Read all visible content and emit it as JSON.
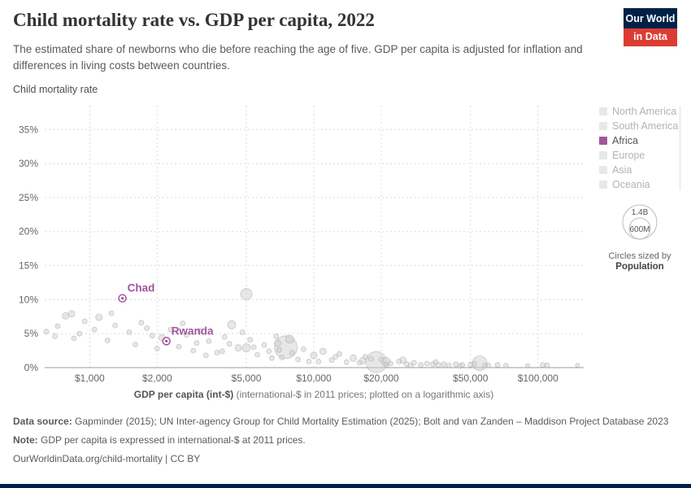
{
  "logo": {
    "line1": "Our World",
    "line2": "in Data"
  },
  "colors": {
    "accent": "#a2559c",
    "logo_navy": "#002147",
    "logo_red": "#dc3d33",
    "bottom_bar": "#002147",
    "inactive_swatch": "#e8e8e8"
  },
  "header": {
    "title": "Child mortality rate vs. GDP per capita, 2022",
    "subtitle": "The estimated share of newborns who die before reaching the age of five. GDP per capita is adjusted for inflation and differences in living costs between countries."
  },
  "chart_data": {
    "type": "scatter",
    "title": "Child mortality rate vs. GDP per capita, 2022",
    "ylabel": "Child mortality rate",
    "xlabel_bold": "GDP per capita (int-$)",
    "xlabel_rest": " (international-$ in 2011 prices; plotted on a logarithmic axis)",
    "x_scale": "log",
    "grid": true,
    "xlim": [
      630,
      160000
    ],
    "ylim": [
      0,
      38.5
    ],
    "x_ticks": [
      1000,
      2000,
      5000,
      10000,
      20000,
      50000,
      100000
    ],
    "x_tick_labels": [
      "$1,000",
      "$2,000",
      "$5,000",
      "$10,000",
      "$20,000",
      "$50,000",
      "$100,000"
    ],
    "y_ticks": [
      0,
      5,
      10,
      15,
      20,
      25,
      30,
      35
    ],
    "y_tick_labels": [
      "0%",
      "5%",
      "10%",
      "15%",
      "20%",
      "25%",
      "30%",
      "35%"
    ],
    "highlight_color": "#a2559c",
    "point_fill": "#cfcfcf",
    "point_stroke": "#a8a8a8",
    "points": [
      [
        640,
        5.3,
        3
      ],
      [
        700,
        4.6,
        3
      ],
      [
        720,
        6.1,
        3
      ],
      [
        780,
        7.6,
        4
      ],
      [
        830,
        7.9,
        4
      ],
      [
        850,
        4.3,
        3
      ],
      [
        900,
        5.0,
        3
      ],
      [
        950,
        6.8,
        3
      ],
      [
        1050,
        5.6,
        3
      ],
      [
        1100,
        7.4,
        4
      ],
      [
        1200,
        4.0,
        3
      ],
      [
        1250,
        8.0,
        3
      ],
      [
        1300,
        6.2,
        3
      ],
      [
        1500,
        5.2,
        3
      ],
      [
        1600,
        3.4,
        3
      ],
      [
        1700,
        6.6,
        3
      ],
      [
        1800,
        5.8,
        3
      ],
      [
        1900,
        4.7,
        3
      ],
      [
        2000,
        2.8,
        3
      ],
      [
        2100,
        4.4,
        4
      ],
      [
        2300,
        5.6,
        3
      ],
      [
        2500,
        3.1,
        3
      ],
      [
        2600,
        6.5,
        3
      ],
      [
        2700,
        4.8,
        3
      ],
      [
        2900,
        2.5,
        3
      ],
      [
        3000,
        3.6,
        3
      ],
      [
        3100,
        5.4,
        3
      ],
      [
        3300,
        1.8,
        3
      ],
      [
        3400,
        3.9,
        3
      ],
      [
        3700,
        2.2,
        3
      ],
      [
        3900,
        2.4,
        3
      ],
      [
        4000,
        4.5,
        3
      ],
      [
        4200,
        3.5,
        3
      ],
      [
        4300,
        6.3,
        5
      ],
      [
        4600,
        2.9,
        4
      ],
      [
        4800,
        5.2,
        3
      ],
      [
        5000,
        10.8,
        7
      ],
      [
        5000,
        2.9,
        5
      ],
      [
        5200,
        4.1,
        3
      ],
      [
        5400,
        3.0,
        3
      ],
      [
        5600,
        1.9,
        3
      ],
      [
        6000,
        3.3,
        3
      ],
      [
        6300,
        2.4,
        3
      ],
      [
        6500,
        1.4,
        3
      ],
      [
        6800,
        4.6,
        3
      ],
      [
        6900,
        3.6,
        4
      ],
      [
        7000,
        2.6,
        3
      ],
      [
        7200,
        1.5,
        3
      ],
      [
        7500,
        3.0,
        14
      ],
      [
        7800,
        4.2,
        5
      ],
      [
        8000,
        2.2,
        3
      ],
      [
        8500,
        1.2,
        3
      ],
      [
        9000,
        2.7,
        3
      ],
      [
        9500,
        0.9,
        3
      ],
      [
        10000,
        1.8,
        4
      ],
      [
        10500,
        0.9,
        3
      ],
      [
        11000,
        2.4,
        4
      ],
      [
        12000,
        1.1,
        3
      ],
      [
        12500,
        1.6,
        3
      ],
      [
        13000,
        2.0,
        3
      ],
      [
        14000,
        0.8,
        3
      ],
      [
        15000,
        1.4,
        4
      ],
      [
        16000,
        0.7,
        3
      ],
      [
        16500,
        1.0,
        4
      ],
      [
        17000,
        1.6,
        3
      ],
      [
        18000,
        1.3,
        3
      ],
      [
        19000,
        0.8,
        13
      ],
      [
        20000,
        1.2,
        3
      ],
      [
        21000,
        0.9,
        5
      ],
      [
        21000,
        0.4,
        3
      ],
      [
        22000,
        0.6,
        3
      ],
      [
        24000,
        0.9,
        3
      ],
      [
        25000,
        1.1,
        4
      ],
      [
        26000,
        0.5,
        3
      ],
      [
        27000,
        0.3,
        3
      ],
      [
        28000,
        0.7,
        3
      ],
      [
        30000,
        0.4,
        3
      ],
      [
        32000,
        0.6,
        3
      ],
      [
        34000,
        0.5,
        3
      ],
      [
        35000,
        0.8,
        3
      ],
      [
        36000,
        0.4,
        3
      ],
      [
        38000,
        0.5,
        3
      ],
      [
        40000,
        0.35,
        3
      ],
      [
        43000,
        0.5,
        3
      ],
      [
        45000,
        0.25,
        3
      ],
      [
        46000,
        0.4,
        3
      ],
      [
        50000,
        0.45,
        3
      ],
      [
        52000,
        0.55,
        3
      ],
      [
        55000,
        0.65,
        9
      ],
      [
        58000,
        0.3,
        3
      ],
      [
        60000,
        0.35,
        3
      ],
      [
        66000,
        0.4,
        3
      ],
      [
        72000,
        0.3,
        3
      ],
      [
        90000,
        0.3,
        2.5
      ],
      [
        105000,
        0.4,
        3
      ],
      [
        110000,
        0.35,
        3
      ],
      [
        150000,
        0.35,
        2.5
      ]
    ],
    "labeled_points": [
      {
        "name": "Chad",
        "gdp": 1400,
        "rate": 10.2,
        "r": 4.5
      },
      {
        "name": "Rwanda",
        "gdp": 2200,
        "rate": 3.9,
        "r": 4.5
      }
    ]
  },
  "legend": {
    "items": [
      {
        "label": "North America",
        "active": false
      },
      {
        "label": "South America",
        "active": false
      },
      {
        "label": "Africa",
        "active": true
      },
      {
        "label": "Europe",
        "active": false
      },
      {
        "label": "Asia",
        "active": false
      },
      {
        "label": "Oceania",
        "active": false
      }
    ]
  },
  "size_legend": {
    "outer_label": "1.4B",
    "inner_label": "600M",
    "caption_line1": "Circles sized by",
    "caption_line2": "Population"
  },
  "footer": {
    "source_label": "Data source:",
    "source_text": " Gapminder (2015); UN Inter-agency Group for Child Mortality Estimation (2025); Bolt and van Zanden – Maddison Project Database 2023",
    "note_label": "Note:",
    "note_text": " GDP per capita is expressed in international-$ at 2011 prices.",
    "link_text": "OurWorldinData.org/child-mortality | CC BY"
  }
}
